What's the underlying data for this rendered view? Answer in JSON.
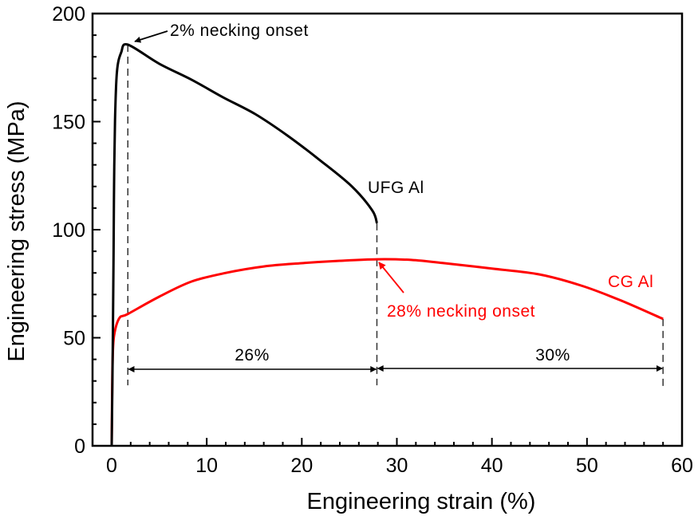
{
  "chart_data": {
    "type": "line",
    "title": "",
    "xlabel": "Engineering strain (%)",
    "ylabel": "Engineering stress (MPa)",
    "xlim": [
      -2,
      60
    ],
    "ylim": [
      0,
      200
    ],
    "x_ticks": [
      0,
      10,
      20,
      30,
      40,
      50,
      60
    ],
    "x_minor_step": 2,
    "y_ticks": [
      0,
      50,
      100,
      150,
      200
    ],
    "y_minor_step": 10,
    "grid": false,
    "legend": "none",
    "series": [
      {
        "name": "UFG Al",
        "color": "#000000",
        "points": [
          [
            0.0,
            0
          ],
          [
            0.1,
            40
          ],
          [
            0.2,
            90
          ],
          [
            0.25,
            121
          ],
          [
            0.35,
            151
          ],
          [
            0.55,
            173
          ],
          [
            1.0,
            182
          ],
          [
            1.7,
            185.6
          ],
          [
            5.0,
            176.8
          ],
          [
            8.4,
            169.4
          ],
          [
            11.7,
            161.3
          ],
          [
            15.1,
            153.5
          ],
          [
            18.5,
            143.5
          ],
          [
            21.8,
            132.5
          ],
          [
            25.2,
            120.3
          ],
          [
            27.4,
            109
          ],
          [
            27.9,
            103
          ]
        ]
      },
      {
        "name": "CG Al",
        "color": "#ff0000",
        "points": [
          [
            0.0,
            0
          ],
          [
            0.05,
            25
          ],
          [
            0.1,
            40
          ],
          [
            0.25,
            51
          ],
          [
            0.8,
            59
          ],
          [
            1.7,
            61
          ],
          [
            5.0,
            69
          ],
          [
            8.4,
            76
          ],
          [
            12,
            80
          ],
          [
            16,
            83
          ],
          [
            20,
            84.5
          ],
          [
            24,
            85.6
          ],
          [
            27.9,
            86.3
          ],
          [
            31.5,
            86
          ],
          [
            35,
            84.5
          ],
          [
            40,
            82
          ],
          [
            45,
            79.3
          ],
          [
            49.5,
            74
          ],
          [
            53.7,
            67
          ],
          [
            58,
            58.7
          ]
        ]
      }
    ],
    "annotations": [
      {
        "text": "2% necking onset",
        "color": "#000000",
        "points_to": [
          1.7,
          185.6
        ]
      },
      {
        "text": "UFG Al",
        "color": "#000000"
      },
      {
        "text": "CG Al",
        "color": "#ff0000"
      },
      {
        "text": "28% necking onset",
        "color": "#ff0000",
        "points_to": [
          27.9,
          86.3
        ]
      },
      {
        "text": "26%",
        "color": "#000000",
        "span": [
          1.7,
          27.9
        ]
      },
      {
        "text": "30%",
        "color": "#000000",
        "span": [
          27.9,
          58
        ]
      }
    ],
    "guides": [
      {
        "type": "vertical-dashed",
        "x": 1.7,
        "from_y": 185.6,
        "to_y": 28
      },
      {
        "type": "vertical-dashed",
        "x": 27.9,
        "from_y": 103,
        "to_y": 28
      },
      {
        "type": "vertical-dashed",
        "x": 58,
        "from_y": 58.7,
        "to_y": 27
      }
    ]
  }
}
